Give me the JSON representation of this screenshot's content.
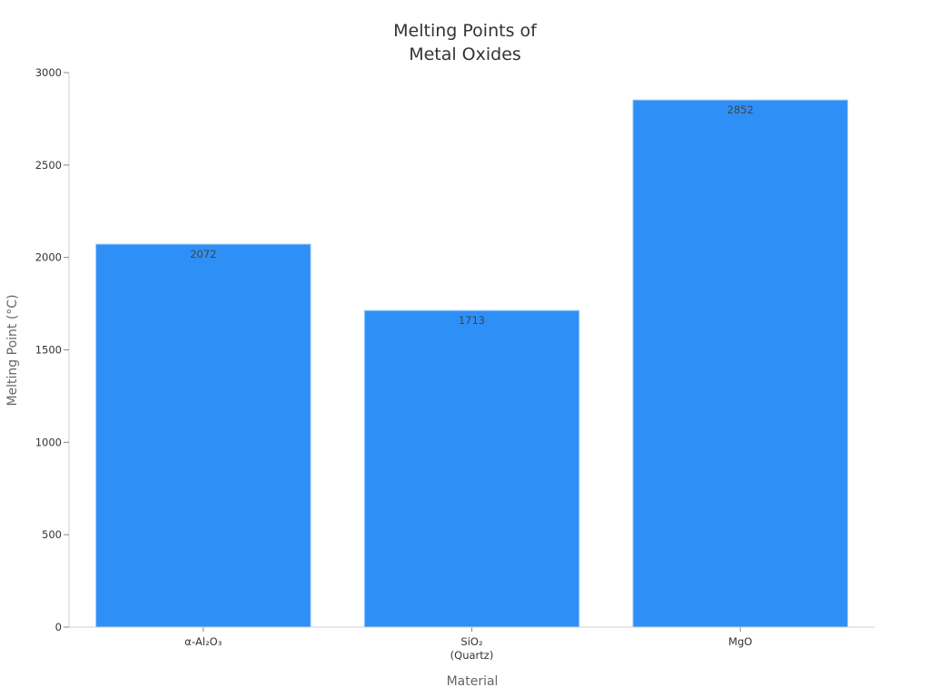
{
  "chart_data": {
    "type": "bar",
    "title": [
      "Melting Points of",
      "Metal Oxides"
    ],
    "xlabel": "Material",
    "ylabel": "Melting Point (°C)",
    "categories": [
      [
        "α-Al₂O₃"
      ],
      [
        "SiO₂",
        "(Quartz)"
      ],
      [
        "MgO"
      ]
    ],
    "values": [
      2072,
      1713,
      2852
    ],
    "data_labels": [
      "2072",
      "1713",
      "2852"
    ],
    "ylim": [
      0,
      3000
    ],
    "yticks": [
      0,
      500,
      1000,
      1500,
      2000,
      2500,
      3000
    ],
    "grid": false,
    "bar_color": "#2e90f7",
    "bar_edge_color": "#a8d0fb"
  }
}
